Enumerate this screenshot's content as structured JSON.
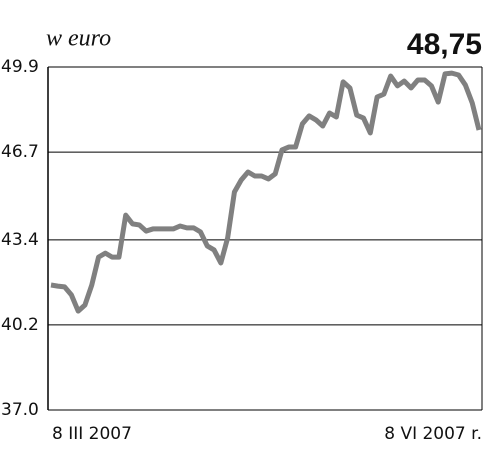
{
  "chart_data": {
    "type": "line",
    "title": "w euro",
    "annotation": "48,75",
    "categories": [
      "8 III 2007",
      null,
      null,
      null,
      null,
      null,
      null,
      null,
      null,
      null,
      null,
      null,
      null,
      null,
      null,
      null,
      null,
      null,
      null,
      null,
      null,
      null,
      null,
      null,
      null,
      null,
      null,
      null,
      null,
      null,
      null,
      null,
      null,
      null,
      null,
      null,
      null,
      null,
      null,
      null,
      null,
      null,
      null,
      null,
      null,
      null,
      null,
      null,
      null,
      null,
      null,
      null,
      null,
      null,
      null,
      null,
      null,
      null,
      null,
      null,
      null,
      null,
      null,
      "8 VI 2007 r."
    ],
    "series": [
      {
        "color": "#808080",
        "values": [
          41.7,
          41.66,
          41.63,
          41.33,
          40.72,
          40.95,
          41.7,
          42.75,
          42.9,
          42.75,
          42.75,
          44.33,
          44.0,
          43.96,
          43.73,
          43.81,
          43.81,
          43.81,
          43.81,
          43.92,
          43.85,
          43.85,
          43.7,
          43.17,
          43.02,
          42.53,
          43.47,
          45.2,
          45.65,
          45.95,
          45.8,
          45.8,
          45.69,
          45.88,
          46.78,
          46.89,
          46.89,
          47.76,
          48.06,
          47.91,
          47.68,
          48.17,
          48.02,
          49.34,
          49.11,
          48.09,
          47.98,
          47.42,
          48.77,
          48.88,
          49.56,
          49.19,
          49.37,
          49.11,
          49.41,
          49.41,
          49.19,
          48.58,
          49.64,
          49.67,
          49.6,
          49.22,
          48.55,
          47.53
        ]
      }
    ],
    "ylim": [
      37,
      49.9
    ],
    "yticks": [
      {
        "value": 37,
        "label": "37.0"
      },
      40.2,
      43.4,
      46.7,
      49.9
    ],
    "grid": true
  }
}
